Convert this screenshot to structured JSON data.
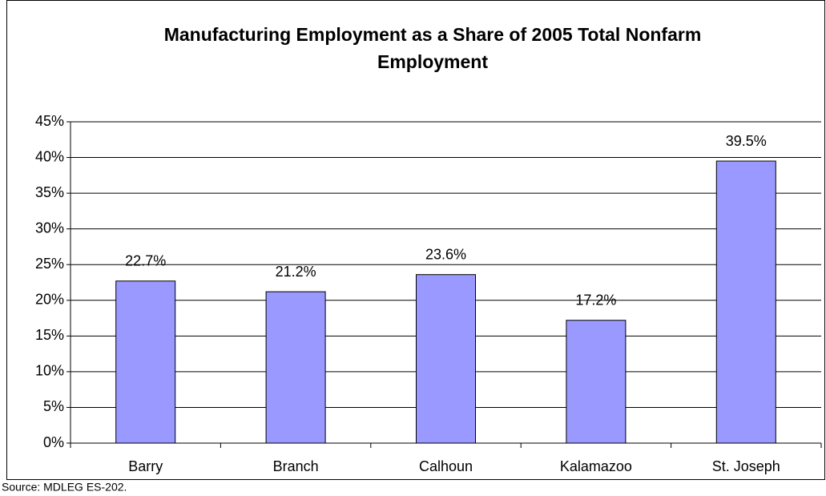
{
  "chart_data": {
    "type": "bar",
    "title": "Manufacturing Employment as a Share of 2005 Total Nonfarm Employment",
    "categories": [
      "Barry",
      "Branch",
      "Calhoun",
      "Kalamazoo",
      "St. Joseph"
    ],
    "values": [
      22.7,
      21.2,
      23.6,
      17.2,
      39.5
    ],
    "value_labels": [
      "22.7%",
      "21.2%",
      "23.6%",
      "17.2%",
      "39.5%"
    ],
    "color": "#9999ff",
    "ylim": [
      0,
      45
    ],
    "yticks": [
      {
        "value": 0,
        "label": "0%"
      },
      {
        "value": 5,
        "label": "5%"
      },
      {
        "value": 10,
        "label": "10%"
      },
      {
        "value": 15,
        "label": "15%"
      },
      {
        "value": 20,
        "label": "20%"
      },
      {
        "value": 25,
        "label": "25%"
      },
      {
        "value": 30,
        "label": "30%"
      },
      {
        "value": 35,
        "label": "35%"
      },
      {
        "value": 40,
        "label": "40%"
      },
      {
        "value": 45,
        "label": "45%"
      }
    ],
    "grid": true,
    "source": "Source: MDLEG ES-202."
  }
}
